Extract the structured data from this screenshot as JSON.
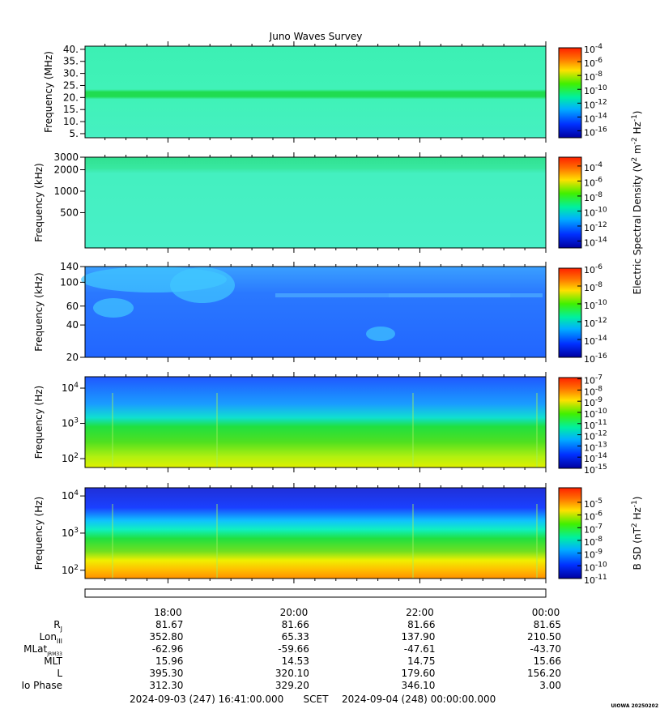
{
  "chart_data": [
    {
      "type": "spectrogram",
      "title": "Juno Waves Survey",
      "ylabel": "Frequency (MHz)",
      "ylog": false,
      "ylim": [
        3.3,
        41.3
      ],
      "yticks": [
        {
          "value": 5,
          "label": "5."
        },
        {
          "value": 10,
          "label": "10."
        },
        {
          "value": 15,
          "label": "15."
        },
        {
          "value": 20,
          "label": "20."
        },
        {
          "value": 25,
          "label": "25."
        },
        {
          "value": 30,
          "label": "30."
        },
        {
          "value": 35,
          "label": "35."
        },
        {
          "value": 40,
          "label": "40."
        }
      ],
      "clim": [
        1e-17,
        0.0001
      ],
      "cticks": [
        {
          "value": 0.0001,
          "base": "10",
          "exponent": "-4"
        },
        {
          "value": 1e-06,
          "base": "10",
          "exponent": "-6"
        },
        {
          "value": 1e-08,
          "base": "10",
          "exponent": "-8"
        },
        {
          "value": 1e-10,
          "base": "10",
          "exponent": "-10"
        },
        {
          "value": 1e-12,
          "base": "10",
          "exponent": "-12"
        },
        {
          "value": 1e-14,
          "base": "10",
          "exponent": "-14"
        },
        {
          "value": 1e-16,
          "base": "10",
          "exponent": "-16"
        }
      ]
    },
    {
      "type": "spectrogram",
      "ylabel": "Frequency (kHz)",
      "ylog": true,
      "ylim": [
        160,
        3000
      ],
      "yticks": [
        500,
        1000,
        2000,
        3000
      ],
      "clim": [
        1.2e-15,
        0.0015
      ],
      "cticks": [
        {
          "value": 0.0001,
          "base": "10",
          "exponent": "-4"
        },
        {
          "value": 1e-06,
          "base": "10",
          "exponent": "-6"
        },
        {
          "value": 1e-08,
          "base": "10",
          "exponent": "-8"
        },
        {
          "value": 1e-10,
          "base": "10",
          "exponent": "-10"
        },
        {
          "value": 1e-12,
          "base": "10",
          "exponent": "-12"
        },
        {
          "value": 1e-14,
          "base": "10",
          "exponent": "-14"
        }
      ],
      "colorbar_label": [
        {
          "text": "Electric Spectral Density (V"
        },
        {
          "sup": "2"
        },
        {
          "text": " m"
        },
        {
          "sup": "-2"
        },
        {
          "text": " Hz"
        },
        {
          "sup": "-1"
        },
        {
          "text": ")"
        }
      ]
    },
    {
      "type": "spectrogram",
      "ylabel": "Frequency (kHz)",
      "ylog": true,
      "ylim": [
        20,
        140
      ],
      "yticks": [
        20,
        40,
        60,
        100,
        140
      ],
      "clim": [
        1e-16,
        1e-06
      ],
      "cticks": [
        {
          "value": 1e-06,
          "base": "10",
          "exponent": "-6"
        },
        {
          "value": 1e-08,
          "base": "10",
          "exponent": "-8"
        },
        {
          "value": 1e-10,
          "base": "10",
          "exponent": "-10"
        },
        {
          "value": 1e-12,
          "base": "10",
          "exponent": "-12"
        },
        {
          "value": 1e-14,
          "base": "10",
          "exponent": "-14"
        },
        {
          "value": 1e-16,
          "base": "10",
          "exponent": "-16"
        }
      ]
    },
    {
      "type": "spectrogram",
      "ylabel": "Frequency (Hz)",
      "ylog": true,
      "ylim": [
        56,
        21000
      ],
      "yticks": [
        {
          "value": 100,
          "base": "10",
          "exponent": "2"
        },
        {
          "value": 1000,
          "base": "10",
          "exponent": "3"
        },
        {
          "value": 10000,
          "base": "10",
          "exponent": "4"
        }
      ],
      "clim": [
        1e-15,
        1.3e-07
      ],
      "cticks": [
        {
          "value": 1e-07,
          "base": "10",
          "exponent": "-7"
        },
        {
          "value": 1e-08,
          "base": "10",
          "exponent": "-8"
        },
        {
          "value": 1e-09,
          "base": "10",
          "exponent": "-9"
        },
        {
          "value": 1e-10,
          "base": "10",
          "exponent": "-10"
        },
        {
          "value": 1e-11,
          "base": "10",
          "exponent": "-11"
        },
        {
          "value": 1e-12,
          "base": "10",
          "exponent": "-12"
        },
        {
          "value": 1e-13,
          "base": "10",
          "exponent": "-13"
        },
        {
          "value": 1e-14,
          "base": "10",
          "exponent": "-14"
        },
        {
          "value": 1e-15,
          "base": "10",
          "exponent": "-15"
        }
      ]
    },
    {
      "type": "spectrogram",
      "ylabel": "Frequency (Hz)",
      "ylog": true,
      "ylim": [
        60,
        16600
      ],
      "yticks": [
        {
          "value": 100,
          "base": "10",
          "exponent": "2"
        },
        {
          "value": 1000,
          "base": "10",
          "exponent": "3"
        },
        {
          "value": 10000,
          "base": "10",
          "exponent": "4"
        }
      ],
      "clim": [
        1e-11,
        0.00014
      ],
      "cticks": [
        {
          "value": 1e-05,
          "base": "10",
          "exponent": "-5"
        },
        {
          "value": 1e-06,
          "base": "10",
          "exponent": "-6"
        },
        {
          "value": 1e-07,
          "base": "10",
          "exponent": "-7"
        },
        {
          "value": 1e-08,
          "base": "10",
          "exponent": "-8"
        },
        {
          "value": 1e-09,
          "base": "10",
          "exponent": "-9"
        },
        {
          "value": 1e-10,
          "base": "10",
          "exponent": "-10"
        },
        {
          "value": 1e-11,
          "base": "10",
          "exponent": "-11"
        }
      ],
      "colorbar_label": [
        {
          "text": "B SD (nT"
        },
        {
          "sup": "2"
        },
        {
          "text": " Hz"
        },
        {
          "sup": "-1"
        },
        {
          "text": ")"
        }
      ]
    }
  ],
  "time_axis": {
    "xlim": [
      0,
      439
    ],
    "xticks": [
      {
        "value": 79,
        "label": "18:00"
      },
      {
        "value": 199,
        "label": "20:00"
      },
      {
        "value": 319,
        "label": "22:00"
      },
      {
        "value": 439,
        "label": "00:00"
      }
    ],
    "xminorticks": [
      19,
      39,
      59,
      99,
      119,
      139,
      159,
      179,
      219,
      239,
      259,
      279,
      299,
      339,
      359,
      379,
      399,
      419
    ]
  },
  "ephemeris": {
    "rows": [
      {
        "label": "R",
        "sub": "J",
        "values": [
          "81.67",
          "81.66",
          "81.66",
          "81.65"
        ]
      },
      {
        "label": "Lon",
        "sub": "III",
        "values": [
          "352.80",
          "65.33",
          "137.90",
          "210.50"
        ]
      },
      {
        "label": "MLat",
        "sub": "JRM33",
        "values": [
          "-62.96",
          "-59.66",
          "-47.61",
          "-43.70"
        ]
      },
      {
        "label": "MLT",
        "values": [
          "15.96",
          "14.53",
          "14.75",
          "15.66"
        ]
      },
      {
        "label": "L",
        "values": [
          "395.30",
          "320.10",
          "179.60",
          "156.20"
        ]
      },
      {
        "label": "Io Phase",
        "values": [
          "312.30",
          "329.20",
          "346.10",
          "3.00"
        ]
      }
    ]
  },
  "footer": {
    "start": "2024-09-03 (247) 16:41:00.000",
    "frame": "SCET",
    "end": "2024-09-04 (248) 00:00:00.000"
  },
  "stamp": "UIOWA 20250202"
}
